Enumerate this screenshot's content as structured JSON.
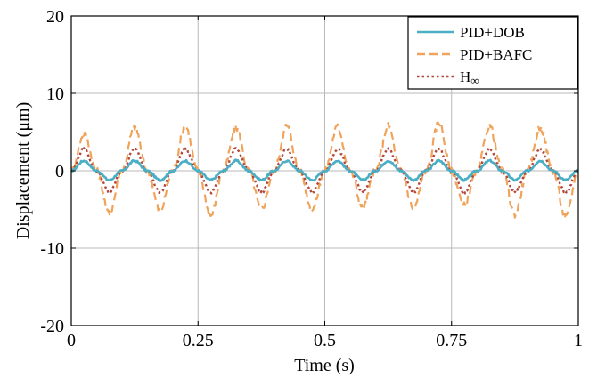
{
  "chart_data": {
    "type": "line",
    "title": "",
    "xlabel": "Time (s)",
    "ylabel": "Displacement  (μm)",
    "xlim": [
      0,
      1
    ],
    "ylim": [
      -20,
      20
    ],
    "xticks": [
      0,
      0.25,
      0.5,
      0.75,
      1
    ],
    "xtick_labels": [
      "0",
      "0.25",
      "0.5",
      "0.75",
      "1"
    ],
    "yticks": [
      -20,
      -10,
      0,
      10,
      20
    ],
    "ytick_labels": [
      "-20",
      "-10",
      "0",
      "10",
      "20"
    ],
    "grid": true,
    "legend_position": "top-right",
    "period_s": 0.1,
    "series": [
      {
        "name": "PID+DOB",
        "color": "#4aaec4",
        "dash": "solid",
        "x": [
          0,
          0.025,
          0.05,
          0.075,
          0.1,
          0.125,
          0.15,
          0.175,
          0.2,
          0.225,
          0.25,
          0.275,
          0.3,
          0.325,
          0.35,
          0.375,
          0.4,
          0.425,
          0.45,
          0.475,
          0.5,
          0.525,
          0.55,
          0.575,
          0.6,
          0.625,
          0.65,
          0.675,
          0.7,
          0.725,
          0.75,
          0.775,
          0.8,
          0.825,
          0.85,
          0.875,
          0.9,
          0.925,
          0.95,
          0.975,
          1
        ],
        "y": [
          0,
          1.3,
          0,
          -1.2,
          0,
          1.3,
          0,
          -1.2,
          0,
          1.3,
          0,
          -1.2,
          0,
          1.3,
          0,
          -1.2,
          0,
          1.3,
          0,
          -1.2,
          0,
          1.3,
          0,
          -1.2,
          0,
          1.3,
          0,
          -1.2,
          0,
          1.3,
          0,
          -1.2,
          0,
          1.3,
          0,
          -1.2,
          0,
          1.3,
          0,
          -1.2,
          0
        ]
      },
      {
        "name": "PID+BAFC",
        "color": "#f0a35a",
        "dash": "dashed",
        "x": [
          0,
          0.025,
          0.05,
          0.075,
          0.1,
          0.125,
          0.15,
          0.175,
          0.2,
          0.225,
          0.25,
          0.275,
          0.3,
          0.325,
          0.35,
          0.375,
          0.4,
          0.425,
          0.45,
          0.475,
          0.5,
          0.525,
          0.55,
          0.575,
          0.6,
          0.625,
          0.65,
          0.675,
          0.7,
          0.725,
          0.75,
          0.775,
          0.8,
          0.825,
          0.85,
          0.875,
          0.9,
          0.925,
          0.95,
          0.975,
          1
        ],
        "y": [
          0,
          4.8,
          0,
          -5.5,
          0,
          5.7,
          0,
          -5.2,
          0,
          5.8,
          0,
          -5.8,
          0,
          5.6,
          0,
          -5.0,
          0,
          5.8,
          0,
          -5.0,
          0,
          5.7,
          0,
          -4.8,
          0,
          5.8,
          0,
          -4.8,
          0,
          6.2,
          0,
          -4.5,
          0,
          5.8,
          0,
          -5.6,
          0,
          5.6,
          0,
          -6.0,
          0
        ]
      },
      {
        "name": "H∞",
        "color": "#b3473b",
        "dash": "dotted",
        "x": [
          0,
          0.025,
          0.05,
          0.075,
          0.1,
          0.125,
          0.15,
          0.175,
          0.2,
          0.225,
          0.25,
          0.275,
          0.3,
          0.325,
          0.35,
          0.375,
          0.4,
          0.425,
          0.45,
          0.475,
          0.5,
          0.525,
          0.55,
          0.575,
          0.6,
          0.625,
          0.65,
          0.675,
          0.7,
          0.725,
          0.75,
          0.775,
          0.8,
          0.825,
          0.85,
          0.875,
          0.9,
          0.925,
          0.95,
          0.975,
          1
        ],
        "y": [
          0,
          2.8,
          0,
          -2.8,
          0,
          2.8,
          0,
          -2.8,
          0,
          2.8,
          0,
          -2.8,
          0,
          2.8,
          0,
          -2.8,
          0,
          2.8,
          0,
          -2.8,
          0,
          2.8,
          0,
          -2.8,
          0,
          2.8,
          0,
          -2.8,
          0,
          2.8,
          0,
          -2.8,
          0,
          2.8,
          0,
          -2.8,
          0,
          2.8,
          0,
          -2.8,
          0
        ]
      }
    ],
    "legend_entries": [
      {
        "label": "PID+DOB",
        "color": "#4aaec4",
        "dash": "solid"
      },
      {
        "label": "PID+BAFC",
        "color": "#f0a35a",
        "dash": "dashed"
      },
      {
        "label_main": "H",
        "label_sub": "∞",
        "color": "#b3473b",
        "dash": "dotted"
      }
    ]
  }
}
